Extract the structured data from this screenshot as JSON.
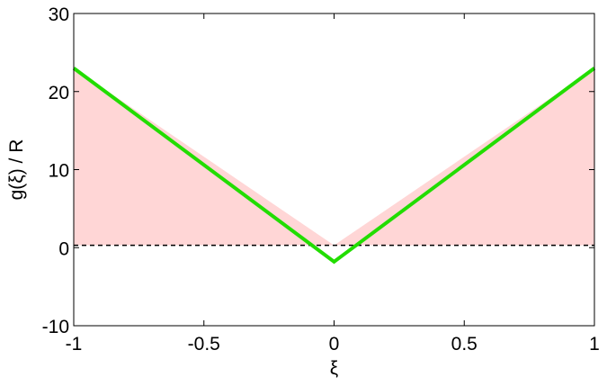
{
  "chart_data": {
    "type": "line",
    "xlabel": "ξ",
    "ylabel": "g(ξ) / R",
    "xlim": [
      -1,
      1
    ],
    "ylim": [
      -10,
      30
    ],
    "x_ticks": [
      -1,
      -0.5,
      0,
      0.5,
      1
    ],
    "x_tick_labels": [
      "-1",
      "-0.5",
      "0",
      "0.5",
      "1"
    ],
    "y_ticks": [
      -10,
      0,
      10,
      20,
      30
    ],
    "y_tick_labels": [
      "-10",
      "0",
      "10",
      "20",
      "30"
    ],
    "grid": false,
    "series": [
      {
        "x": [
          -1,
          0,
          1
        ],
        "y": [
          23,
          -1.8,
          23
        ],
        "color": "#22dd00",
        "style": "solid"
      },
      {
        "x": [
          -1,
          1
        ],
        "y": [
          0.3,
          0.3
        ],
        "color": "#000000",
        "style": "dashed"
      }
    ],
    "shaded_region": {
      "color": "#ffd6d6",
      "x": [
        -1,
        0,
        1
      ],
      "upper": [
        23,
        0.3,
        23
      ],
      "lower": 0.3
    }
  }
}
